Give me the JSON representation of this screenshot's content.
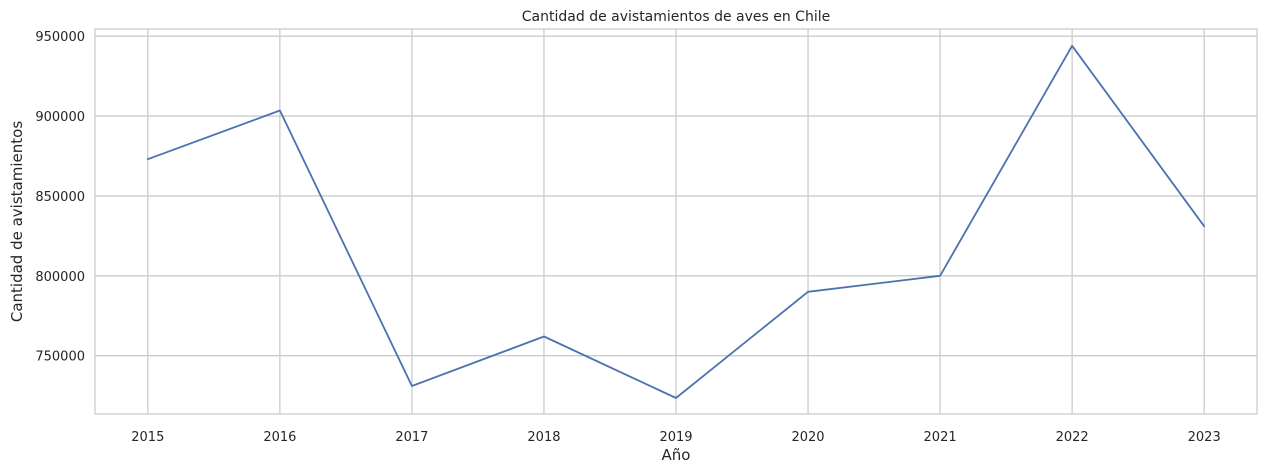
{
  "chart_data": {
    "type": "line",
    "title": "Cantidad de avistamientos de aves en Chile",
    "xlabel": "Año",
    "ylabel": "Cantidad de avistamientos",
    "x": [
      "2015",
      "2016",
      "2017",
      "2018",
      "2019",
      "2020",
      "2021",
      "2022",
      "2023"
    ],
    "series": [
      {
        "values": [
          873000,
          903500,
          731000,
          762000,
          723500,
          790000,
          800000,
          944000,
          831000
        ],
        "color": "#4c72b0"
      }
    ],
    "yticks": [
      750000,
      800000,
      850000,
      900000,
      950000
    ],
    "ytick_labels": [
      "750000",
      "800000",
      "850000",
      "900000",
      "950000"
    ],
    "ylim": [
      713500,
      954500
    ],
    "xlim": [
      2014.6,
      2023.4
    ],
    "grid": true,
    "legend": "none"
  }
}
